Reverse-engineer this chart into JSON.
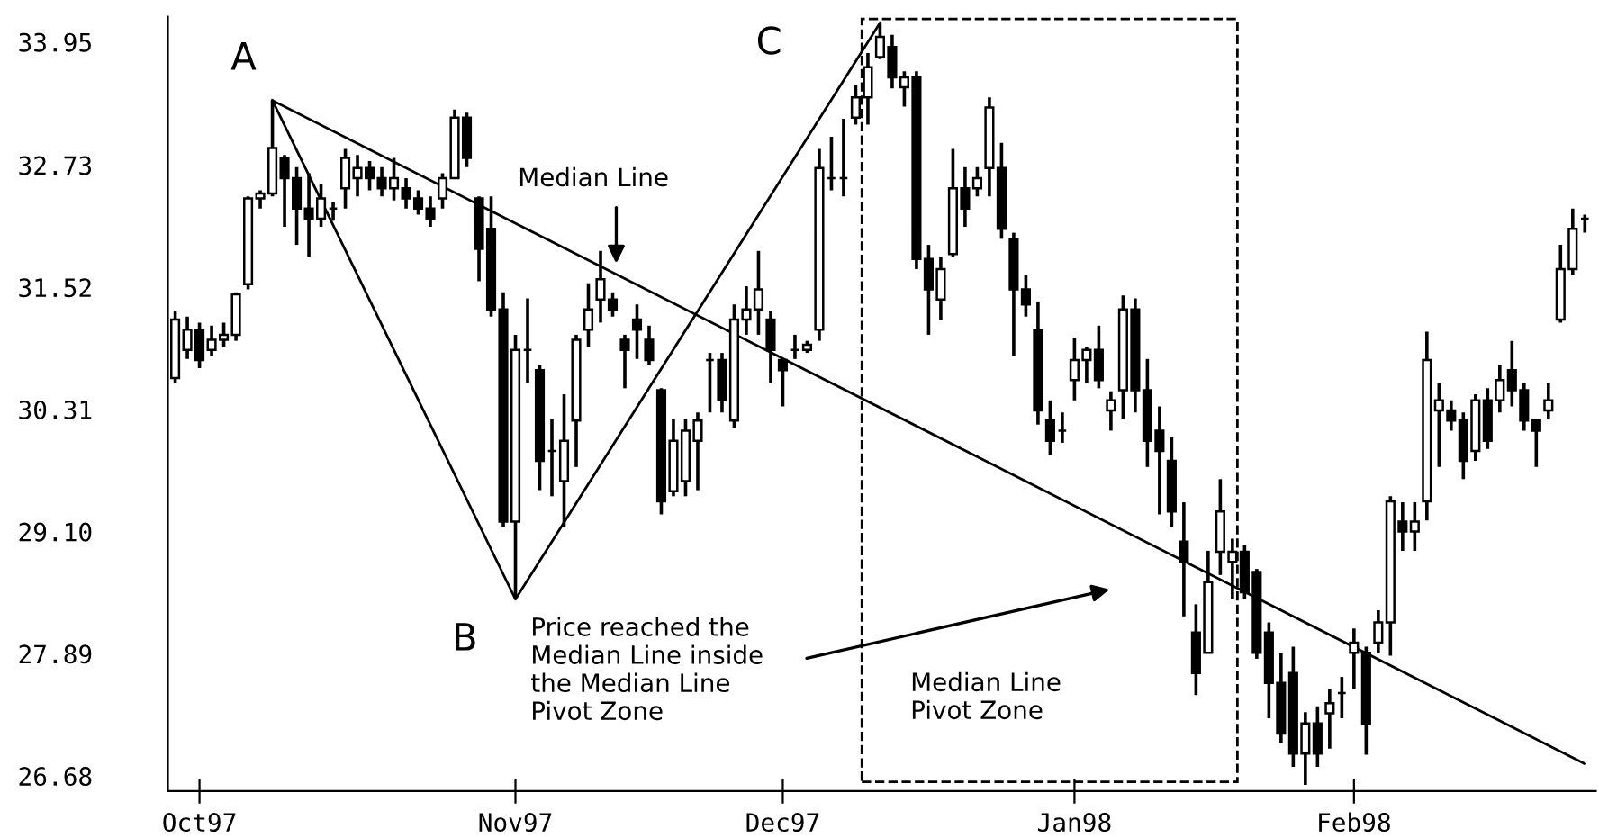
{
  "chart_data": {
    "type": "candlestick",
    "categories": [
      null,
      null,
      "Oct97",
      null,
      null,
      null,
      null,
      null,
      null,
      null,
      null,
      null,
      null,
      null,
      null,
      null,
      null,
      null,
      null,
      null,
      null,
      null,
      null,
      null,
      null,
      null,
      null,
      null,
      "Nov97",
      null,
      null,
      null,
      null,
      null,
      null,
      null,
      null,
      null,
      null,
      null,
      null,
      null,
      null,
      null,
      null,
      null,
      null,
      null,
      null,
      null,
      "Dec97",
      null,
      null,
      null,
      null,
      null,
      null,
      null,
      null,
      null,
      null,
      null,
      null,
      null,
      null,
      null,
      null,
      null,
      null,
      null,
      null,
      null,
      null,
      null,
      "Jan98",
      null,
      null,
      null,
      null,
      null,
      null,
      null,
      null,
      null,
      null,
      null,
      null,
      null,
      null,
      null,
      null,
      null,
      null,
      null,
      null,
      null,
      null,
      "Feb98",
      null,
      null,
      null,
      null,
      null,
      null,
      null,
      null,
      null,
      null,
      null,
      null,
      null,
      null,
      null,
      null,
      null,
      null,
      null
    ],
    "ohlc": [
      [
        30.62,
        31.29,
        30.57,
        31.2
      ],
      [
        30.9,
        31.23,
        30.81,
        31.1
      ],
      [
        31.1,
        31.17,
        30.72,
        30.8
      ],
      [
        30.9,
        31.14,
        30.84,
        31.0
      ],
      [
        31.0,
        31.17,
        30.93,
        31.05
      ],
      [
        31.05,
        31.47,
        30.99,
        31.45
      ],
      [
        31.55,
        32.42,
        31.5,
        32.4
      ],
      [
        32.4,
        32.48,
        32.3,
        32.45
      ],
      [
        32.45,
        33.37,
        32.42,
        32.9
      ],
      [
        32.8,
        32.83,
        32.12,
        32.6
      ],
      [
        32.6,
        32.71,
        31.94,
        32.3
      ],
      [
        32.3,
        32.65,
        31.82,
        32.2
      ],
      [
        32.2,
        32.54,
        32.12,
        32.4
      ],
      [
        32.3,
        32.36,
        32.18,
        32.3
      ],
      [
        32.5,
        32.89,
        32.3,
        32.8
      ],
      [
        32.6,
        32.83,
        32.42,
        32.7
      ],
      [
        32.7,
        32.77,
        32.48,
        32.6
      ],
      [
        32.6,
        32.71,
        32.42,
        32.5
      ],
      [
        32.5,
        32.8,
        32.38,
        32.6
      ],
      [
        32.5,
        32.6,
        32.3,
        32.4
      ],
      [
        32.4,
        32.48,
        32.24,
        32.3
      ],
      [
        32.3,
        32.42,
        32.12,
        32.2
      ],
      [
        32.4,
        32.65,
        32.3,
        32.6
      ],
      [
        32.6,
        33.28,
        32.6,
        33.2
      ],
      [
        33.2,
        33.25,
        32.71,
        32.8
      ],
      [
        32.4,
        32.42,
        31.58,
        31.9
      ],
      [
        32.1,
        32.42,
        31.23,
        31.3
      ],
      [
        31.3,
        31.47,
        29.15,
        29.2
      ],
      [
        29.2,
        31.05,
        28.43,
        30.9
      ],
      [
        30.9,
        31.41,
        30.57,
        30.9
      ],
      [
        30.7,
        30.75,
        29.51,
        29.8
      ],
      [
        29.9,
        30.22,
        29.45,
        29.9
      ],
      [
        29.6,
        30.46,
        29.15,
        30.0
      ],
      [
        30.2,
        31.05,
        29.74,
        31.0
      ],
      [
        31.1,
        31.56,
        30.93,
        31.3
      ],
      [
        31.4,
        31.88,
        31.17,
        31.6
      ],
      [
        31.4,
        31.47,
        31.23,
        31.3
      ],
      [
        31.0,
        31.05,
        30.52,
        30.9
      ],
      [
        31.2,
        31.35,
        30.81,
        31.1
      ],
      [
        31.0,
        31.14,
        30.75,
        30.8
      ],
      [
        30.5,
        30.52,
        29.27,
        29.4
      ],
      [
        29.5,
        30.22,
        29.45,
        30.0
      ],
      [
        29.6,
        30.22,
        29.45,
        30.1
      ],
      [
        30.0,
        30.28,
        29.51,
        30.2
      ],
      [
        30.8,
        30.87,
        30.28,
        30.8
      ],
      [
        30.8,
        30.87,
        30.28,
        30.4
      ],
      [
        30.2,
        31.35,
        30.13,
        31.2
      ],
      [
        31.2,
        31.53,
        31.05,
        31.3
      ],
      [
        31.3,
        31.88,
        31.05,
        31.5
      ],
      [
        31.2,
        31.29,
        30.57,
        30.9
      ],
      [
        30.8,
        30.81,
        30.34,
        30.7
      ],
      [
        30.9,
        31.05,
        30.81,
        30.9
      ],
      [
        30.9,
        30.99,
        30.87,
        30.95
      ],
      [
        31.1,
        32.89,
        30.99,
        32.7
      ],
      [
        32.6,
        33.01,
        32.48,
        32.6
      ],
      [
        32.6,
        33.19,
        32.42,
        32.6
      ],
      [
        33.2,
        33.52,
        33.13,
        33.4
      ],
      [
        33.4,
        33.84,
        33.13,
        33.7
      ],
      [
        33.8,
        34.14,
        33.78,
        34.0
      ],
      [
        33.9,
        34.02,
        33.49,
        33.6
      ],
      [
        33.5,
        33.66,
        33.31,
        33.6
      ],
      [
        33.6,
        33.66,
        31.7,
        31.8
      ],
      [
        31.8,
        31.94,
        31.05,
        31.5
      ],
      [
        31.4,
        31.82,
        31.2,
        31.7
      ],
      [
        31.85,
        32.89,
        31.82,
        32.5
      ],
      [
        32.5,
        32.71,
        32.12,
        32.3
      ],
      [
        32.5,
        32.71,
        32.42,
        32.6
      ],
      [
        32.7,
        33.4,
        32.42,
        33.3
      ],
      [
        32.7,
        32.95,
        32.0,
        32.1
      ],
      [
        32.0,
        32.06,
        30.84,
        31.5
      ],
      [
        31.5,
        31.64,
        31.23,
        31.35
      ],
      [
        31.1,
        31.38,
        30.16,
        30.3
      ],
      [
        30.2,
        30.4,
        29.86,
        30.0
      ],
      [
        30.1,
        30.28,
        29.98,
        30.1
      ],
      [
        30.6,
        31.02,
        30.4,
        30.8
      ],
      [
        30.8,
        30.93,
        30.57,
        30.9
      ],
      [
        30.9,
        31.14,
        30.52,
        30.6
      ],
      [
        30.3,
        30.49,
        30.1,
        30.4
      ],
      [
        30.5,
        31.44,
        30.22,
        31.3
      ],
      [
        31.3,
        31.41,
        30.28,
        30.5
      ],
      [
        30.5,
        30.81,
        29.74,
        30.0
      ],
      [
        30.1,
        30.34,
        29.27,
        29.9
      ],
      [
        29.8,
        30.04,
        29.15,
        29.3
      ],
      [
        29.0,
        29.39,
        28.26,
        28.8
      ],
      [
        28.1,
        28.38,
        27.48,
        27.7
      ],
      [
        27.9,
        28.91,
        27.9,
        28.6
      ],
      [
        28.9,
        29.62,
        28.67,
        29.3
      ],
      [
        28.8,
        29.03,
        28.43,
        28.9
      ],
      [
        28.9,
        28.97,
        28.43,
        28.5
      ],
      [
        28.7,
        28.73,
        27.84,
        27.9
      ],
      [
        28.1,
        28.2,
        27.25,
        27.6
      ],
      [
        27.6,
        27.9,
        27.01,
        27.1
      ],
      [
        27.7,
        27.96,
        26.77,
        26.9
      ],
      [
        26.9,
        27.31,
        26.59,
        27.2
      ],
      [
        27.2,
        27.37,
        26.77,
        26.9
      ],
      [
        27.3,
        27.54,
        26.95,
        27.4
      ],
      [
        27.5,
        27.66,
        27.25,
        27.5
      ],
      [
        27.9,
        28.14,
        27.54,
        28.0
      ],
      [
        27.9,
        27.96,
        26.89,
        27.2
      ],
      [
        28.0,
        28.32,
        27.9,
        28.2
      ],
      [
        28.2,
        29.45,
        27.87,
        29.4
      ],
      [
        29.2,
        29.39,
        28.91,
        29.1
      ],
      [
        29.1,
        29.39,
        28.91,
        29.2
      ],
      [
        29.4,
        31.08,
        29.21,
        30.8
      ],
      [
        30.3,
        30.57,
        29.74,
        30.4
      ],
      [
        30.3,
        30.4,
        30.1,
        30.2
      ],
      [
        30.2,
        30.28,
        29.62,
        29.8
      ],
      [
        29.9,
        30.46,
        29.8,
        30.4
      ],
      [
        30.4,
        30.52,
        29.92,
        30.0
      ],
      [
        30.4,
        30.75,
        30.28,
        30.6
      ],
      [
        30.7,
        30.99,
        30.34,
        30.5
      ],
      [
        30.5,
        30.57,
        30.1,
        30.2
      ],
      [
        30.2,
        30.22,
        29.74,
        30.1
      ],
      [
        30.3,
        30.57,
        30.22,
        30.4
      ],
      [
        31.2,
        31.94,
        31.17,
        31.7
      ],
      [
        31.7,
        32.3,
        31.64,
        32.1
      ],
      [
        32.2,
        32.24,
        32.06,
        32.2
      ]
    ],
    "color": "#000000",
    "series": [
      {
        "type": "line",
        "color": "#000000",
        "values": [
          null,
          null,
          null,
          null,
          null,
          null,
          null,
          null,
          33.37,
          null,
          null,
          null,
          null,
          null,
          null,
          null,
          null,
          null,
          null,
          null,
          null,
          null,
          null,
          null,
          null,
          null,
          null,
          null,
          28.43,
          null,
          null,
          null,
          null,
          null,
          null,
          null,
          null,
          null,
          null,
          null,
          null,
          null,
          null,
          null,
          null,
          null,
          null,
          null,
          null,
          null,
          null,
          null,
          null,
          null,
          null,
          null,
          null,
          null,
          34.14,
          null,
          null,
          null,
          null,
          null,
          null,
          null,
          null,
          null,
          null,
          null,
          null,
          null,
          null,
          null,
          null,
          null,
          null,
          null,
          null,
          null,
          null,
          null,
          null,
          null,
          null,
          null,
          null,
          null,
          null,
          null,
          null,
          null,
          null,
          null,
          null,
          null,
          null,
          null,
          null,
          null,
          null,
          null,
          null,
          null,
          null,
          null,
          null,
          null,
          null,
          null,
          null,
          null,
          null,
          null,
          null,
          null,
          null
        ]
      },
      {
        "type": "line",
        "color": "#000000",
        "values": [
          null,
          null,
          null,
          null,
          null,
          null,
          null,
          null,
          33.37,
          null,
          null,
          null,
          null,
          null,
          null,
          null,
          null,
          null,
          null,
          null,
          null,
          null,
          null,
          null,
          null,
          null,
          null,
          null,
          null,
          null,
          null,
          null,
          null,
          null,
          null,
          null,
          null,
          null,
          null,
          null,
          null,
          null,
          null,
          null,
          null,
          null,
          null,
          null,
          null,
          null,
          null,
          null,
          null,
          null,
          null,
          null,
          null,
          null,
          null,
          null,
          null,
          null,
          null,
          null,
          null,
          null,
          null,
          null,
          null,
          null,
          null,
          null,
          null,
          null,
          null,
          null,
          null,
          null,
          null,
          null,
          null,
          null,
          null,
          null,
          null,
          null,
          null,
          null,
          null,
          null,
          null,
          null,
          null,
          null,
          null,
          null,
          null,
          null,
          null,
          null,
          null,
          null,
          null,
          null,
          null,
          null,
          null,
          null,
          null,
          null,
          null,
          null,
          null,
          null,
          null,
          null,
          26.8
        ]
      }
    ],
    "annotations": [
      "A",
      "B",
      "C",
      "Median Line",
      "Price reached the\nMedian Line inside\nthe Median Line\nPivot Zone",
      "Median Line\nPivot Zone"
    ],
    "ylim": [
      26.53,
      34.2
    ],
    "yticks": [
      {
        "value": 26.68,
        "label": "26.68"
      },
      {
        "value": 27.89,
        "label": "27.89"
      },
      {
        "value": 29.1,
        "label": "29.10"
      },
      {
        "value": 30.31,
        "label": "30.31"
      },
      {
        "value": 31.52,
        "label": "31.52"
      },
      {
        "value": 32.73,
        "label": "32.73"
      },
      {
        "value": 33.95,
        "label": "33.95"
      }
    ],
    "grid": false,
    "legend": false
  }
}
